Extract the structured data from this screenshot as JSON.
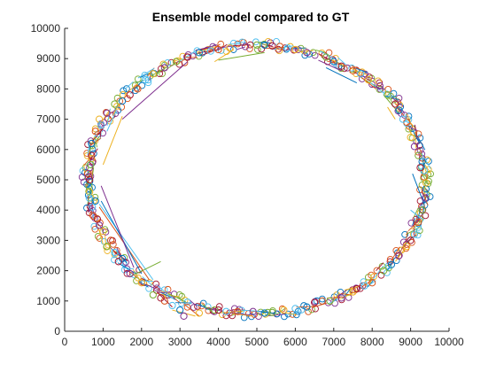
{
  "chart_data": {
    "type": "scatter",
    "title": "Ensemble model compared to GT",
    "xlabel": "",
    "ylabel": "",
    "xlim": [
      0,
      10000
    ],
    "ylim": [
      0,
      10000
    ],
    "xticks": [
      "0",
      "1000",
      "2000",
      "3000",
      "4000",
      "5000",
      "6000",
      "7000",
      "8000",
      "9000",
      "10000"
    ],
    "yticks": [
      "0",
      "1000",
      "2000",
      "3000",
      "4000",
      "5000",
      "6000",
      "7000",
      "8000",
      "9000",
      "10000"
    ],
    "grid": false,
    "legend": "none",
    "marker": "open-circle",
    "ellipse": {
      "cx": 5000,
      "cy": 5000,
      "rx": 4400,
      "ry": 4450
    },
    "series": [
      {
        "color": "#0072BD",
        "points": [
          [
            650,
            4950
          ],
          [
            700,
            6200
          ],
          [
            1500,
            7600
          ],
          [
            3500,
            9200
          ],
          [
            5200,
            9450
          ],
          [
            7000,
            8900
          ],
          [
            8700,
            7300
          ],
          [
            9300,
            5600
          ],
          [
            9400,
            4700
          ],
          [
            8500,
            2200
          ],
          [
            6300,
            800
          ],
          [
            5200,
            600
          ],
          [
            3000,
            700
          ],
          [
            1500,
            2400
          ],
          [
            800,
            4300
          ]
        ]
      },
      {
        "color": "#D95319",
        "points": [
          [
            600,
            5200
          ],
          [
            800,
            6600
          ],
          [
            1900,
            8000
          ],
          [
            4000,
            9300
          ],
          [
            5600,
            9400
          ],
          [
            7500,
            8600
          ],
          [
            8900,
            6900
          ],
          [
            9350,
            5100
          ],
          [
            9200,
            3600
          ],
          [
            8000,
            1600
          ],
          [
            6700,
            1000
          ],
          [
            4500,
            650
          ],
          [
            2600,
            1000
          ],
          [
            1200,
            3000
          ],
          [
            750,
            3800
          ]
        ]
      },
      {
        "color": "#EDB120",
        "points": [
          [
            650,
            4600
          ],
          [
            900,
            7000
          ],
          [
            2300,
            8500
          ],
          [
            4300,
            9350
          ],
          [
            6000,
            9300
          ],
          [
            7900,
            8300
          ],
          [
            9000,
            6400
          ],
          [
            9400,
            4900
          ],
          [
            8900,
            2800
          ],
          [
            7500,
            1300
          ],
          [
            5700,
            700
          ],
          [
            3500,
            600
          ],
          [
            2000,
            1600
          ],
          [
            1000,
            3300
          ],
          [
            700,
            5700
          ]
        ]
      },
      {
        "color": "#7E2F8E",
        "points": [
          [
            620,
            5100
          ],
          [
            1100,
            7200
          ],
          [
            2600,
            8700
          ],
          [
            4700,
            9400
          ],
          [
            6300,
            9200
          ],
          [
            8200,
            8100
          ],
          [
            9100,
            6100
          ],
          [
            9380,
            4400
          ],
          [
            8700,
            2500
          ],
          [
            7200,
            1100
          ],
          [
            4900,
            650
          ],
          [
            3100,
            500
          ],
          [
            1700,
            1900
          ],
          [
            900,
            3500
          ],
          [
            650,
            5400
          ]
        ]
      },
      {
        "color": "#77AC30",
        "points": [
          [
            680,
            5500
          ],
          [
            1300,
            7500
          ],
          [
            2900,
            8900
          ],
          [
            5000,
            9450
          ],
          [
            6800,
            9050
          ],
          [
            8400,
            7800
          ],
          [
            9200,
            5800
          ],
          [
            9300,
            4000
          ],
          [
            8300,
            2000
          ],
          [
            6900,
            1000
          ],
          [
            5400,
            620
          ],
          [
            3900,
            700
          ],
          [
            2300,
            1200
          ],
          [
            1100,
            2800
          ],
          [
            630,
            4800
          ]
        ]
      },
      {
        "color": "#4DBEEE",
        "points": [
          [
            640,
            4400
          ],
          [
            950,
            6800
          ],
          [
            2100,
            8300
          ],
          [
            3800,
            9250
          ],
          [
            5800,
            9350
          ],
          [
            7700,
            8500
          ],
          [
            8800,
            7000
          ],
          [
            9350,
            5300
          ],
          [
            9100,
            3200
          ],
          [
            7800,
            1500
          ],
          [
            6000,
            750
          ],
          [
            4200,
            650
          ],
          [
            2800,
            850
          ],
          [
            1300,
            2600
          ],
          [
            720,
            4100
          ]
        ]
      },
      {
        "color": "#A2142F",
        "points": [
          [
            700,
            5800
          ],
          [
            1700,
            7800
          ],
          [
            3200,
            9050
          ],
          [
            5400,
            9420
          ],
          [
            7200,
            8750
          ],
          [
            8600,
            7500
          ],
          [
            9250,
            5400
          ],
          [
            9000,
            3000
          ],
          [
            7600,
            1400
          ],
          [
            6500,
            950
          ],
          [
            4000,
            700
          ],
          [
            2500,
            1100
          ],
          [
            1400,
            2300
          ],
          [
            850,
            3700
          ],
          [
            650,
            5000
          ]
        ]
      }
    ],
    "segments": [
      {
        "color": "#7E2F8E",
        "from": [
          1500,
          7000
        ],
        "to": [
          3200,
          8900
        ]
      },
      {
        "color": "#EDB120",
        "from": [
          3900,
          8900
        ],
        "to": [
          4400,
          9300
        ]
      },
      {
        "color": "#77AC30",
        "from": [
          5200,
          9200
        ],
        "to": [
          4000,
          8950
        ]
      },
      {
        "color": "#0072BD",
        "from": [
          7600,
          8200
        ],
        "to": [
          6800,
          8700
        ]
      },
      {
        "color": "#7E2F8E",
        "from": [
          7200,
          8600
        ],
        "to": [
          6600,
          8950
        ]
      },
      {
        "color": "#EDB120",
        "from": [
          1000,
          5500
        ],
        "to": [
          1500,
          7100
        ]
      },
      {
        "color": "#4DBEEE",
        "from": [
          1100,
          6600
        ],
        "to": [
          1350,
          7300
        ]
      },
      {
        "color": "#D95319",
        "from": [
          900,
          4100
        ],
        "to": [
          2200,
          1700
        ]
      },
      {
        "color": "#4DBEEE",
        "from": [
          900,
          4200
        ],
        "to": [
          2300,
          1700
        ]
      },
      {
        "color": "#0072BD",
        "from": [
          950,
          4300
        ],
        "to": [
          2000,
          1900
        ]
      },
      {
        "color": "#7E2F8E",
        "from": [
          950,
          4800
        ],
        "to": [
          1800,
          2100
        ]
      },
      {
        "color": "#77AC30",
        "from": [
          1700,
          1800
        ],
        "to": [
          2500,
          2300
        ]
      },
      {
        "color": "#A2142F",
        "from": [
          2400,
          1300
        ],
        "to": [
          2800,
          800
        ]
      },
      {
        "color": "#EDB120",
        "from": [
          2800,
          700
        ],
        "to": [
          3400,
          500
        ]
      },
      {
        "color": "#D95319",
        "from": [
          3500,
          500
        ],
        "to": [
          3100,
          900
        ]
      },
      {
        "color": "#0072BD",
        "from": [
          9050,
          5200
        ],
        "to": [
          9350,
          4200
        ]
      },
      {
        "color": "#4DBEEE",
        "from": [
          9000,
          4000
        ],
        "to": [
          9300,
          3700
        ]
      },
      {
        "color": "#EDB120",
        "from": [
          8600,
          7000
        ],
        "to": [
          8400,
          7400
        ]
      },
      {
        "color": "#77AC30",
        "from": [
          8700,
          7200
        ],
        "to": [
          8300,
          7800
        ]
      },
      {
        "color": "#D95319",
        "from": [
          8100,
          8000
        ],
        "to": [
          7600,
          8500
        ]
      }
    ]
  }
}
